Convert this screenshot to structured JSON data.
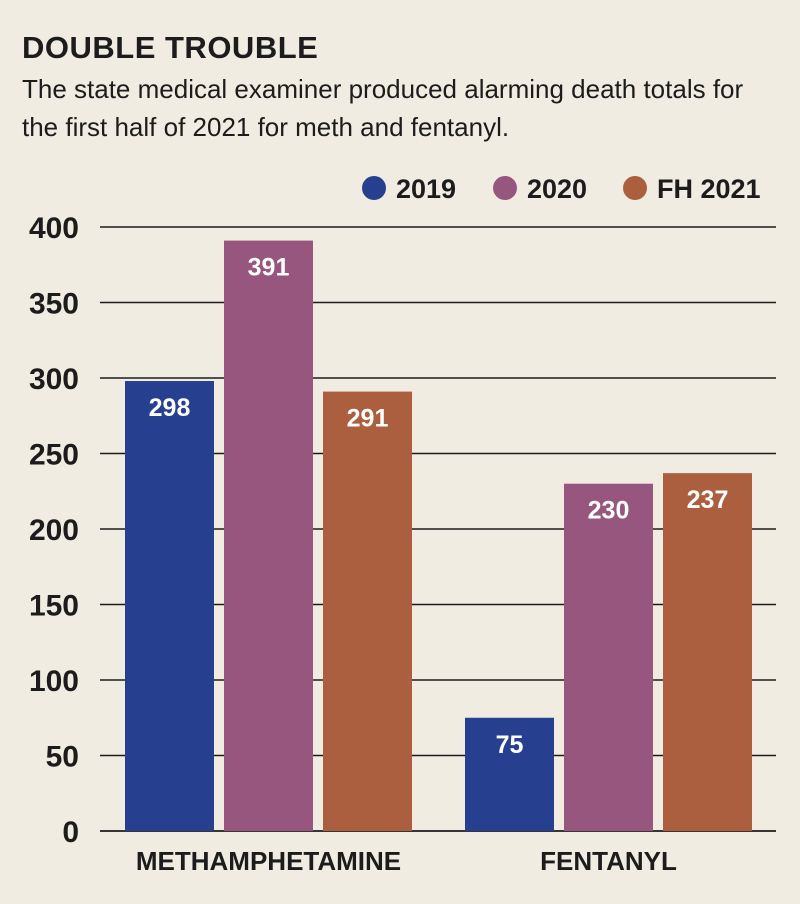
{
  "header": {
    "title": "DOUBLE TROUBLE",
    "subtitle": "The state medical examiner produced alarming death totals for the first half of 2021 for meth and fentanyl."
  },
  "chart_data": {
    "type": "bar",
    "title": "DOUBLE TROUBLE",
    "subtitle": "The state medical examiner produced alarming death totals for the first half of 2021 for meth and fentanyl.",
    "categories": [
      "METHAMPHETAMINE",
      "FENTANYL"
    ],
    "series": [
      {
        "name": "2019",
        "color": "#263f8f",
        "values": [
          298,
          75
        ]
      },
      {
        "name": "2020",
        "color": "#97567e",
        "values": [
          391,
          230
        ]
      },
      {
        "name": "FH 2021",
        "color": "#ac5f3f",
        "values": [
          291,
          237
        ]
      }
    ],
    "ylim": [
      0,
      400
    ],
    "yticks": [
      0,
      50,
      100,
      150,
      200,
      250,
      300,
      350,
      400
    ],
    "grid": true,
    "legend": "top-right",
    "data_labels": true
  }
}
